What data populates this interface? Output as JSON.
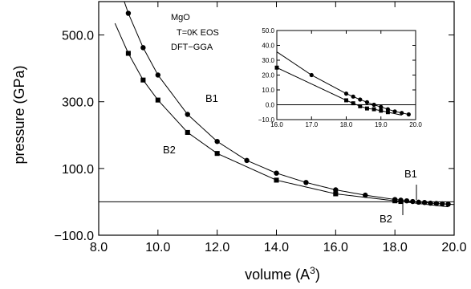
{
  "chart_data": [
    {
      "type": "scatter",
      "role": "main",
      "xlabel": "volume (A",
      "xlabel_sup": "3",
      "xlabel_close": ")",
      "ylabel": "pressure (GPa)",
      "xlim": [
        8.0,
        20.0
      ],
      "ylim": [
        -100.0,
        600.0
      ],
      "xticks": [
        8.0,
        10.0,
        12.0,
        14.0,
        16.0,
        18.0,
        20.0
      ],
      "yticks": [
        -100.0,
        100.0,
        300.0,
        500.0
      ],
      "xtick_labels": [
        "8.0",
        "10.0",
        "12.0",
        "14.0",
        "16.0",
        "18.0",
        "20.0"
      ],
      "ytick_labels": [
        "−100.0",
        "100.0",
        "300.0",
        "500.0"
      ],
      "grid": false,
      "reference_line_y": 0.0,
      "annotations": [
        "MgO",
        "T=0K EOS",
        "DFT−GGA"
      ],
      "series": [
        {
          "name": "B1",
          "marker": "circle",
          "x": [
            9.0,
            9.5,
            10.0,
            11.0,
            12.0,
            13.0,
            14.0,
            15.0,
            16.0,
            17.0,
            18.0,
            18.2,
            18.4,
            18.6,
            18.8,
            19.0,
            19.2,
            19.4,
            19.6,
            19.8
          ],
          "y": [
            565,
            462,
            380,
            262,
            181,
            124,
            86,
            58,
            36,
            20,
            7,
            5,
            3,
            1,
            -1,
            -2,
            -4,
            -5,
            -6,
            -7
          ]
        },
        {
          "name": "B2",
          "marker": "square",
          "x": [
            9.0,
            9.5,
            10.0,
            11.0,
            12.0,
            14.0,
            16.0,
            18.0,
            18.2
          ],
          "y": [
            445,
            365,
            305,
            208,
            145,
            65,
            24,
            3,
            1
          ]
        }
      ]
    },
    {
      "type": "scatter",
      "role": "inset",
      "xlim": [
        16.0,
        20.0
      ],
      "ylim": [
        -10.0,
        50.0
      ],
      "xticks": [
        16.0,
        17.0,
        18.0,
        19.0,
        20.0
      ],
      "yticks": [
        -10.0,
        0.0,
        10.0,
        20.0,
        30.0,
        40.0,
        50.0
      ],
      "xtick_labels": [
        "16.0",
        "17.0",
        "18.0",
        "19.0",
        "20.0"
      ],
      "ytick_labels": [
        "−10.0",
        "0.0",
        "10.0",
        "20.0",
        "30.0",
        "40.0",
        "50.0"
      ],
      "reference_line_y": 0.0,
      "series": [
        {
          "name": "B1",
          "marker": "circle",
          "x": [
            17.0,
            18.0,
            18.2,
            18.4,
            18.6,
            18.8,
            19.0,
            19.2,
            19.4,
            19.6,
            19.8
          ],
          "y": [
            20.0,
            7.5,
            5.5,
            3.5,
            1.7,
            0.0,
            -1.5,
            -3.0,
            -4.5,
            -5.5,
            -6.5
          ]
        },
        {
          "name": "B2",
          "marker": "square",
          "x": [
            16.0,
            18.0,
            18.2,
            18.4,
            18.6,
            18.8,
            19.0,
            19.2
          ],
          "y": [
            25.0,
            3.0,
            1.0,
            -1.0,
            -2.5,
            -3.0,
            -4.0,
            -5.0
          ]
        }
      ]
    }
  ]
}
